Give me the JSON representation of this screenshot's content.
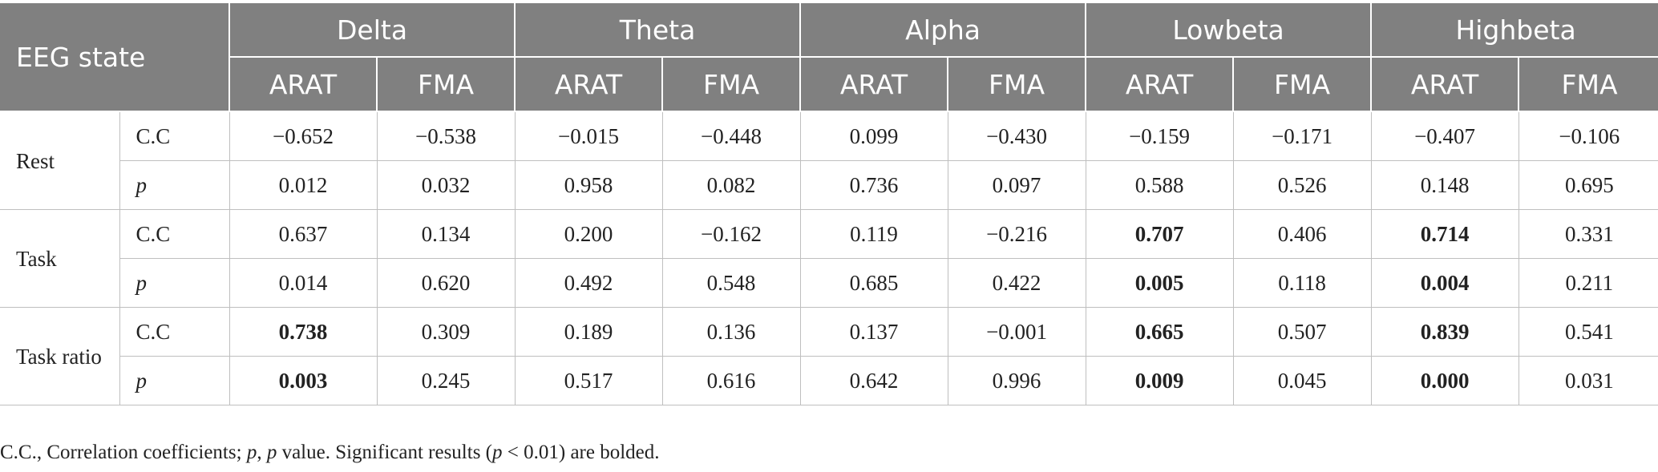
{
  "header": {
    "state_label": "EEG state",
    "bands": [
      "Delta",
      "Theta",
      "Alpha",
      "Lowbeta",
      "Highbeta"
    ],
    "measures": [
      "ARAT",
      "FMA"
    ]
  },
  "rows": [
    {
      "state": "Rest",
      "stat": "C.C",
      "italic": false,
      "values": [
        "−0.652",
        "−0.538",
        "−0.015",
        "−0.448",
        "0.099",
        "−0.430",
        "−0.159",
        "−0.171",
        "−0.407",
        "−0.106"
      ],
      "bold": []
    },
    {
      "state": "",
      "stat": "p",
      "italic": true,
      "values": [
        "0.012",
        "0.032",
        "0.958",
        "0.082",
        "0.736",
        "0.097",
        "0.588",
        "0.526",
        "0.148",
        "0.695"
      ],
      "bold": []
    },
    {
      "state": "Task",
      "stat": "C.C",
      "italic": false,
      "values": [
        "0.637",
        "0.134",
        "0.200",
        "−0.162",
        "0.119",
        "−0.216",
        "0.707",
        "0.406",
        "0.714",
        "0.331"
      ],
      "bold": [
        6,
        8
      ]
    },
    {
      "state": "",
      "stat": "p",
      "italic": true,
      "values": [
        "0.014",
        "0.620",
        "0.492",
        "0.548",
        "0.685",
        "0.422",
        "0.005",
        "0.118",
        "0.004",
        "0.211"
      ],
      "bold": [
        6,
        8
      ]
    },
    {
      "state": "Task ratio",
      "stat": "C.C",
      "italic": false,
      "values": [
        "0.738",
        "0.309",
        "0.189",
        "0.136",
        "0.137",
        "−0.001",
        "0.665",
        "0.507",
        "0.839",
        "0.541"
      ],
      "bold": [
        0,
        6,
        8
      ]
    },
    {
      "state": "",
      "stat": "p",
      "italic": true,
      "values": [
        "0.003",
        "0.245",
        "0.517",
        "0.616",
        "0.642",
        "0.996",
        "0.009",
        "0.045",
        "0.000",
        "0.031"
      ],
      "bold": [
        0,
        6,
        8
      ]
    }
  ],
  "footnote": {
    "part1": "C.C., Correlation coefficients; ",
    "p1": "p",
    "part2": ", ",
    "p2": "p",
    "part3": " value. Significant results (",
    "p3": "p",
    "part4": " < 0.01) are bolded."
  }
}
